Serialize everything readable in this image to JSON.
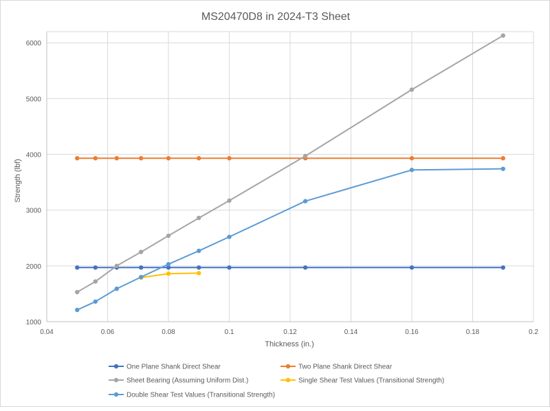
{
  "chart_data": {
    "type": "line",
    "title": "MS20470D8 in 2024-T3 Sheet",
    "xlabel": "Thickness (in.)",
    "ylabel": "Strength (lbf)",
    "xlim": [
      0.04,
      0.2
    ],
    "ylim": [
      1000,
      6200
    ],
    "x_ticks": [
      0.04,
      0.06,
      0.08,
      0.1,
      0.12,
      0.14,
      0.16,
      0.18,
      0.2
    ],
    "x_tick_labels": [
      "0.04",
      "0.06",
      "0.08",
      "0.1",
      "0.12",
      "0.14",
      "0.16",
      "0.18",
      "0.2"
    ],
    "y_ticks": [
      1000,
      2000,
      3000,
      4000,
      5000,
      6000
    ],
    "y_tick_labels": [
      "1000",
      "2000",
      "3000",
      "4000",
      "5000",
      "6000"
    ],
    "grid": true,
    "legend_position": "bottom",
    "series": [
      {
        "name": "One Plane Shank Direct Shear",
        "color": "#4472c4",
        "x": [
          0.05,
          0.056,
          0.063,
          0.071,
          0.08,
          0.09,
          0.1,
          0.125,
          0.16,
          0.19
        ],
        "y": [
          1970,
          1970,
          1970,
          1970,
          1970,
          1970,
          1970,
          1970,
          1970,
          1970
        ]
      },
      {
        "name": "Two Plane Shank Direct Shear",
        "color": "#ed7d31",
        "x": [
          0.05,
          0.056,
          0.063,
          0.071,
          0.08,
          0.09,
          0.1,
          0.125,
          0.16,
          0.19
        ],
        "y": [
          3930,
          3930,
          3930,
          3930,
          3930,
          3930,
          3930,
          3930,
          3930,
          3930
        ]
      },
      {
        "name": "Sheet Bearing (Assuming Uniform Dist.)",
        "color": "#a5a5a5",
        "x": [
          0.05,
          0.056,
          0.063,
          0.071,
          0.08,
          0.09,
          0.1,
          0.125,
          0.16,
          0.19
        ],
        "y": [
          1530,
          1720,
          2000,
          2250,
          2540,
          2860,
          3170,
          3970,
          5160,
          6130
        ]
      },
      {
        "name": "Single Shear Test Values (Transitional Strength)",
        "color": "#ffc000",
        "x": [
          0.071,
          0.08,
          0.09
        ],
        "y": [
          1790,
          1860,
          1870
        ]
      },
      {
        "name": "Double Shear Test Values (Transitional Strength)",
        "color": "#5b9bd5",
        "x": [
          0.05,
          0.056,
          0.063,
          0.071,
          0.08,
          0.09,
          0.1,
          0.125,
          0.16,
          0.19
        ],
        "y": [
          1210,
          1360,
          1590,
          1800,
          2030,
          2270,
          2520,
          3160,
          3720,
          3740
        ]
      }
    ],
    "colors": {
      "grid": "#d9d9d9",
      "text": "#595959",
      "background": "#ffffff"
    }
  }
}
